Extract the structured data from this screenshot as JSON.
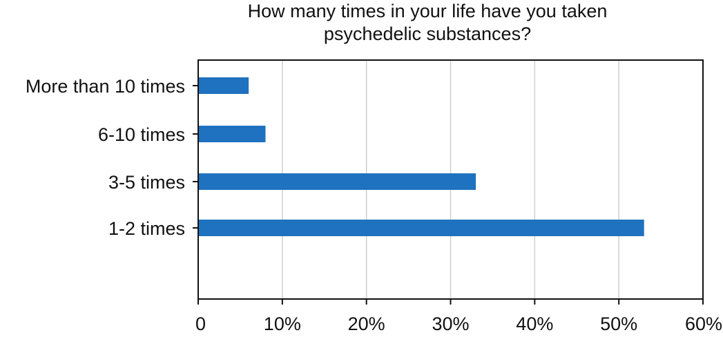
{
  "chart_data": {
    "type": "bar",
    "orientation": "horizontal",
    "title_lines": [
      "How many times in your life have you taken",
      "psychedelic substances?"
    ],
    "categories": [
      "More than 10 times",
      "6-10 times",
      "3-5 times ",
      "1-2 times "
    ],
    "values": [
      6,
      8,
      33,
      53
    ],
    "xlabel": "",
    "ylabel": "",
    "xlim": [
      0,
      60
    ],
    "x_ticks": [
      0,
      10,
      20,
      30,
      40,
      50,
      60
    ],
    "x_tick_labels": [
      "0",
      "10%",
      "20%",
      "30%",
      "40%",
      "50%",
      "60%"
    ],
    "grid": "vertical",
    "legend": "none",
    "colors": {
      "bar": "#1f72bf",
      "grid": "#cfcfcf",
      "axis": "#111111"
    }
  }
}
